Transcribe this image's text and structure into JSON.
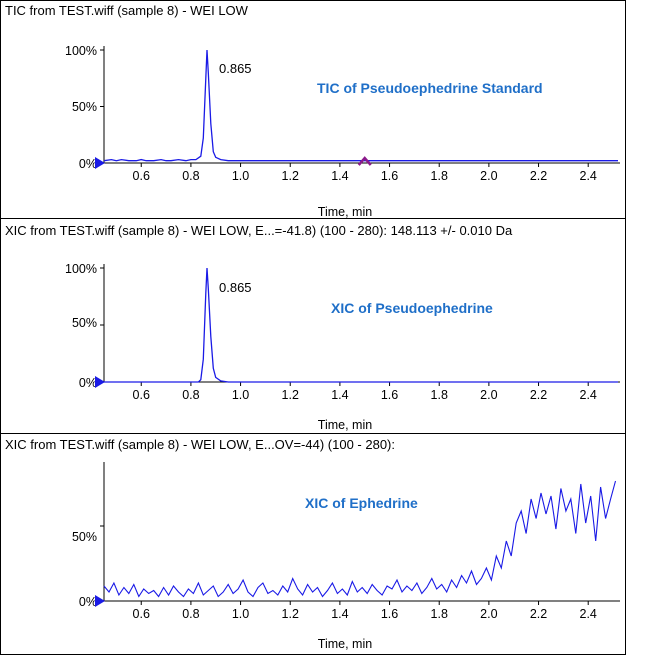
{
  "colors": {
    "trace": "#1a1ae6",
    "annotation": "#1f6fc8",
    "marker": "#1a1ae6",
    "cursor": "#8b1a8b",
    "border": "#000000"
  },
  "icons": {
    "baseline_marker": "right-arrow-marker-icon",
    "cursor_marker": "caret-up-icon"
  },
  "chart_data": [
    {
      "type": "line",
      "title": "TIC from TEST.wiff (sample 8) - WEI LOW",
      "xlabel": "Time, min",
      "ylabel": "",
      "xlim": [
        0.45,
        2.52
      ],
      "ylim": [
        0,
        100
      ],
      "xticks": [
        "0.6",
        "0.8",
        "1.0",
        "1.2",
        "1.4",
        "1.6",
        "1.8",
        "2.0",
        "2.2",
        "2.4"
      ],
      "yticks": [
        "100%",
        "50%",
        "0%"
      ],
      "annotation": "TIC of Pseudoephedrine Standard",
      "peak_label": "0.865",
      "peak": {
        "x": 0.865,
        "y": 100
      },
      "cursor_x": 1.5,
      "series": [
        {
          "x": [
            0.45,
            0.48,
            0.5,
            0.52,
            0.55,
            0.58,
            0.6,
            0.62,
            0.65,
            0.68,
            0.7,
            0.72,
            0.75,
            0.78,
            0.8,
            0.82,
            0.84,
            0.85,
            0.86,
            0.865,
            0.87,
            0.88,
            0.89,
            0.9,
            0.92,
            0.95,
            1.0,
            1.05,
            1.1,
            1.2,
            1.3,
            1.4,
            1.5,
            1.6,
            1.7,
            1.8,
            1.9,
            2.0,
            2.1,
            2.2,
            2.3,
            2.4,
            2.52
          ],
          "y": [
            2,
            3,
            2,
            3,
            2,
            2,
            3,
            2,
            2,
            3,
            2,
            2,
            3,
            2,
            3,
            3,
            6,
            22,
            75,
            100,
            80,
            35,
            10,
            5,
            3,
            2,
            2,
            2,
            2,
            2,
            2,
            2,
            2,
            2,
            2,
            2,
            2,
            2,
            2,
            2,
            2,
            2,
            2
          ]
        }
      ]
    },
    {
      "type": "line",
      "title": "XIC from TEST.wiff (sample 8) - WEI LOW, E...=-41.8) (100 - 280): 148.113 +/- 0.010 Da",
      "xlabel": "Time, min",
      "ylabel": "",
      "xlim": [
        0.45,
        2.52
      ],
      "ylim": [
        0,
        100
      ],
      "xticks": [
        "0.6",
        "0.8",
        "1.0",
        "1.2",
        "1.4",
        "1.6",
        "1.8",
        "2.0",
        "2.2",
        "2.4"
      ],
      "yticks": [
        "100%",
        "50%",
        "0%"
      ],
      "annotation": "XIC of Pseudoephedrine",
      "peak_label": "0.865",
      "peak": {
        "x": 0.865,
        "y": 100
      },
      "series": [
        {
          "x": [
            0.45,
            0.6,
            0.8,
            0.83,
            0.84,
            0.85,
            0.86,
            0.865,
            0.87,
            0.88,
            0.89,
            0.9,
            0.92,
            0.95,
            1.0,
            1.2,
            1.4,
            1.6,
            1.8,
            2.0,
            2.2,
            2.4,
            2.52
          ],
          "y": [
            0,
            0,
            0,
            0,
            2,
            20,
            78,
            100,
            82,
            40,
            12,
            4,
            1,
            0,
            0,
            0,
            0,
            0,
            0,
            0,
            0,
            0,
            0
          ]
        }
      ]
    },
    {
      "type": "line",
      "title": "XIC from TEST.wiff (sample 8) - WEI LOW, E...OV=-44) (100 - 280):",
      "xlabel": "Time, min",
      "ylabel": "",
      "xlim": [
        0.45,
        2.52
      ],
      "ylim": [
        0,
        90
      ],
      "xticks": [
        "0.6",
        "0.8",
        "1.0",
        "1.2",
        "1.4",
        "1.6",
        "1.8",
        "2.0",
        "2.2",
        "2.4"
      ],
      "yticks": [
        "50%",
        "0%"
      ],
      "annotation": "XIC of Ephedrine",
      "series": [
        {
          "x": [
            0.45,
            0.47,
            0.49,
            0.51,
            0.53,
            0.55,
            0.57,
            0.59,
            0.61,
            0.63,
            0.65,
            0.67,
            0.69,
            0.71,
            0.73,
            0.75,
            0.77,
            0.79,
            0.81,
            0.83,
            0.85,
            0.87,
            0.89,
            0.91,
            0.93,
            0.95,
            0.97,
            0.99,
            1.01,
            1.03,
            1.05,
            1.07,
            1.09,
            1.11,
            1.13,
            1.15,
            1.17,
            1.19,
            1.21,
            1.23,
            1.25,
            1.27,
            1.29,
            1.31,
            1.33,
            1.35,
            1.37,
            1.39,
            1.41,
            1.43,
            1.45,
            1.47,
            1.49,
            1.51,
            1.53,
            1.55,
            1.57,
            1.59,
            1.61,
            1.63,
            1.65,
            1.67,
            1.69,
            1.71,
            1.73,
            1.75,
            1.77,
            1.79,
            1.81,
            1.83,
            1.85,
            1.87,
            1.89,
            1.91,
            1.93,
            1.95,
            1.97,
            1.99,
            2.01,
            2.03,
            2.05,
            2.07,
            2.09,
            2.11,
            2.13,
            2.15,
            2.17,
            2.19,
            2.21,
            2.23,
            2.25,
            2.27,
            2.29,
            2.31,
            2.33,
            2.35,
            2.37,
            2.39,
            2.41,
            2.43,
            2.45,
            2.47,
            2.49,
            2.51
          ],
          "y": [
            10,
            6,
            12,
            4,
            9,
            5,
            11,
            3,
            8,
            5,
            7,
            3,
            9,
            4,
            10,
            6,
            3,
            8,
            5,
            12,
            4,
            7,
            10,
            3,
            6,
            11,
            5,
            8,
            14,
            6,
            3,
            9,
            12,
            5,
            7,
            4,
            10,
            6,
            15,
            8,
            4,
            11,
            6,
            9,
            3,
            7,
            12,
            5,
            8,
            4,
            13,
            6,
            9,
            5,
            11,
            7,
            4,
            10,
            8,
            14,
            6,
            10,
            7,
            12,
            5,
            9,
            15,
            8,
            11,
            6,
            14,
            9,
            17,
            12,
            20,
            11,
            15,
            22,
            14,
            30,
            22,
            40,
            30,
            52,
            60,
            45,
            68,
            55,
            72,
            58,
            70,
            48,
            75,
            60,
            68,
            45,
            78,
            52,
            70,
            40,
            76,
            55,
            68,
            80
          ]
        }
      ]
    }
  ]
}
